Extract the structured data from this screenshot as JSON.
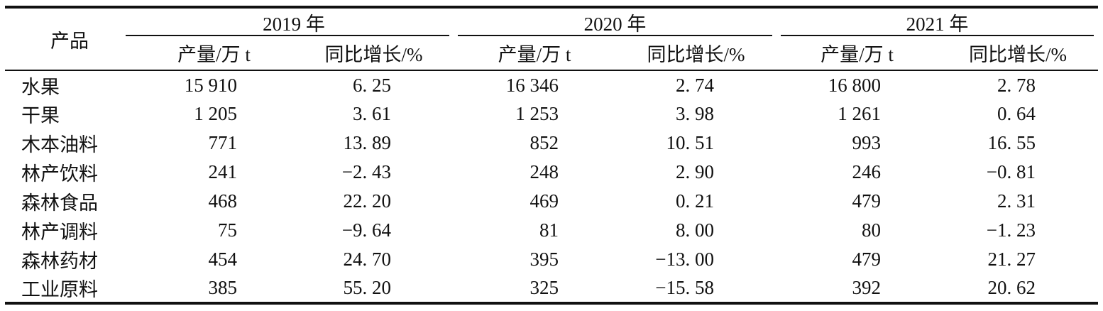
{
  "table": {
    "product_header": "产品",
    "year_groups": [
      {
        "year": "2019 年",
        "sub_production": "产量/万 t",
        "sub_growth": "同比增长/%"
      },
      {
        "year": "2020 年",
        "sub_production": "产量/万 t",
        "sub_growth": "同比增长/%"
      },
      {
        "year": "2021 年",
        "sub_production": "产量/万 t",
        "sub_growth": "同比增长/%"
      }
    ],
    "rows": [
      {
        "product": "水果",
        "cells": [
          "15 910",
          "6. 25",
          "16 346",
          "2. 74",
          "16 800",
          "2. 78"
        ]
      },
      {
        "product": "干果",
        "cells": [
          "1 205",
          "3. 61",
          "1 253",
          "3. 98",
          "1 261",
          "0. 64"
        ]
      },
      {
        "product": "木本油料",
        "cells": [
          "771",
          "13. 89",
          "852",
          "10. 51",
          "993",
          "16. 55"
        ]
      },
      {
        "product": "林产饮料",
        "cells": [
          "241",
          "−2. 43",
          "248",
          "2. 90",
          "246",
          "−0. 81"
        ]
      },
      {
        "product": "森林食品",
        "cells": [
          "468",
          "22. 20",
          "469",
          "0. 21",
          "479",
          "2. 31"
        ]
      },
      {
        "product": "林产调料",
        "cells": [
          "75",
          "−9. 64",
          "81",
          "8. 00",
          "80",
          "−1. 23"
        ]
      },
      {
        "product": "森林药材",
        "cells": [
          "454",
          "24. 70",
          "395",
          "−13. 00",
          "479",
          "21. 27"
        ]
      },
      {
        "product": "工业原料",
        "cells": [
          "385",
          "55. 20",
          "325",
          "−15. 58",
          "392",
          "20. 62"
        ]
      }
    ]
  },
  "chart_data": {
    "type": "table",
    "row_header": "产品",
    "years": [
      "2019",
      "2020",
      "2021"
    ],
    "metrics": [
      "产量/万 t",
      "同比增长/%"
    ],
    "products": [
      "水果",
      "干果",
      "木本油料",
      "林产饮料",
      "森林食品",
      "林产调料",
      "森林药材",
      "工业原料"
    ],
    "values": {
      "2019": {
        "production": [
          15910,
          1205,
          771,
          241,
          468,
          75,
          454,
          385
        ],
        "growth_pct": [
          6.25,
          3.61,
          13.89,
          -2.43,
          22.2,
          -9.64,
          24.7,
          55.2
        ]
      },
      "2020": {
        "production": [
          16346,
          1253,
          852,
          248,
          469,
          81,
          395,
          325
        ],
        "growth_pct": [
          2.74,
          3.98,
          10.51,
          2.9,
          0.21,
          8.0,
          -13.0,
          -15.58
        ]
      },
      "2021": {
        "production": [
          16800,
          1261,
          993,
          246,
          479,
          80,
          479,
          392
        ],
        "growth_pct": [
          2.78,
          0.64,
          16.55,
          -0.81,
          2.31,
          -1.23,
          21.27,
          20.62
        ]
      }
    },
    "layout": {
      "thick_rule_top_bottom": true,
      "year_group_underlines": true,
      "text_color": "#111111",
      "background": "#ffffff"
    }
  }
}
